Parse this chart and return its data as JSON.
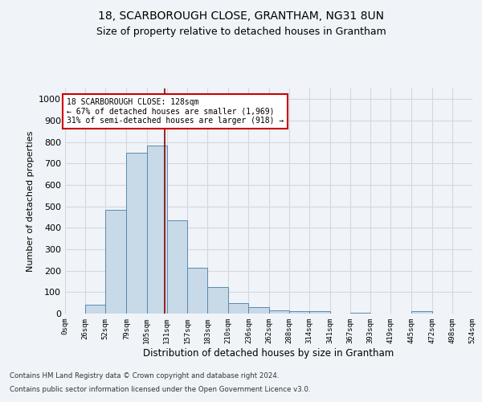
{
  "title1": "18, SCARBOROUGH CLOSE, GRANTHAM, NG31 8UN",
  "title2": "Size of property relative to detached houses in Grantham",
  "xlabel": "Distribution of detached houses by size in Grantham",
  "ylabel": "Number of detached properties",
  "bin_edges": [
    0,
    26,
    52,
    79,
    105,
    131,
    157,
    183,
    210,
    236,
    262,
    288,
    314,
    341,
    367,
    393,
    419,
    445,
    472,
    498,
    524
  ],
  "bar_heights": [
    0,
    40,
    485,
    750,
    785,
    435,
    215,
    125,
    50,
    30,
    15,
    10,
    10,
    0,
    5,
    0,
    0,
    10,
    0,
    0
  ],
  "bar_color": "#c8d9e8",
  "bar_edge_color": "#5a8ab0",
  "vline_x": 128,
  "vline_color": "#8b0000",
  "annotation_text": "18 SCARBOROUGH CLOSE: 128sqm\n← 67% of detached houses are smaller (1,969)\n31% of semi-detached houses are larger (918) →",
  "annotation_box_color": "#ffffff",
  "annotation_box_edge": "#cc0000",
  "ylim": [
    0,
    1050
  ],
  "yticks": [
    0,
    100,
    200,
    300,
    400,
    500,
    600,
    700,
    800,
    900,
    1000
  ],
  "grid_color": "#d0d8e4",
  "footer1": "Contains HM Land Registry data © Crown copyright and database right 2024.",
  "footer2": "Contains public sector information licensed under the Open Government Licence v3.0.",
  "bg_color": "#f0f4f8",
  "tick_labels": [
    "0sqm",
    "26sqm",
    "52sqm",
    "79sqm",
    "105sqm",
    "131sqm",
    "157sqm",
    "183sqm",
    "210sqm",
    "236sqm",
    "262sqm",
    "288sqm",
    "314sqm",
    "341sqm",
    "367sqm",
    "393sqm",
    "419sqm",
    "445sqm",
    "472sqm",
    "498sqm",
    "524sqm"
  ]
}
